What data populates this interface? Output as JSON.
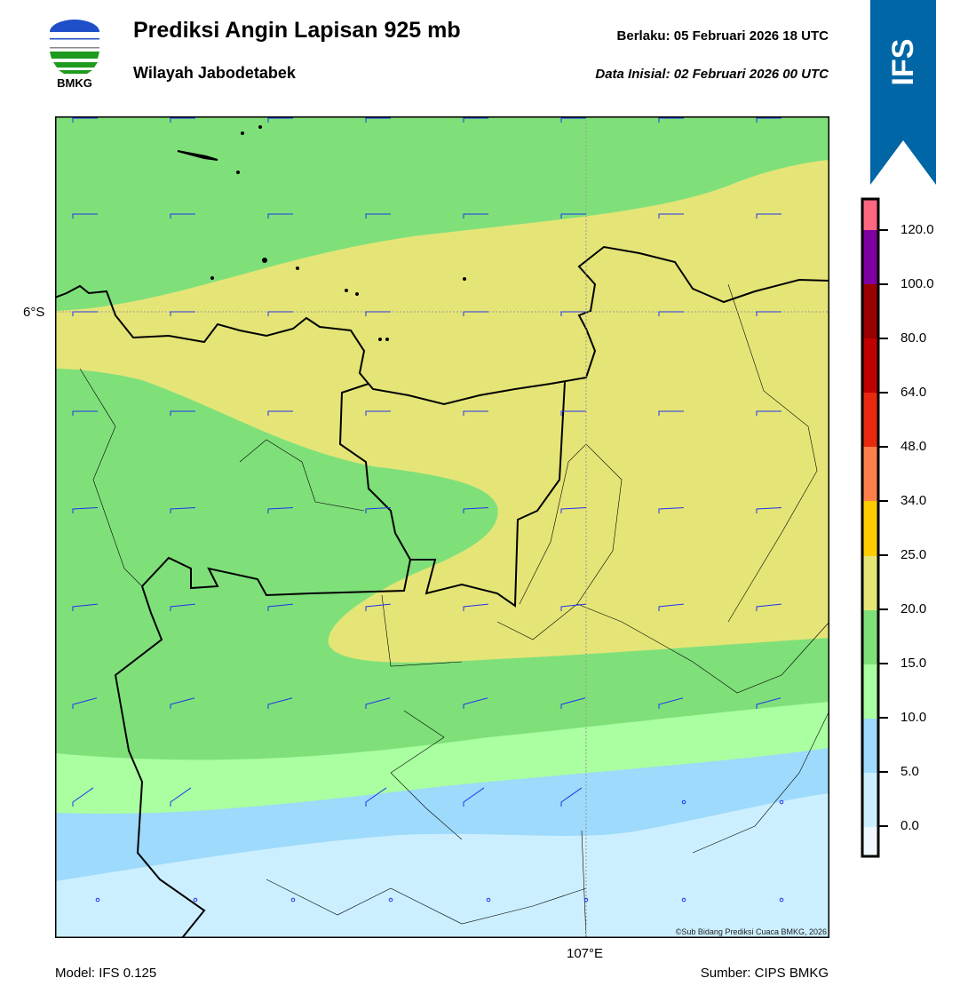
{
  "header": {
    "logo_text": "BMKG",
    "title": "Prediksi Angin Lapisan 925 mb",
    "subtitle": "Wilayah Jabodetabek",
    "valid": "Berlaku:  05 Februari 2026 18 UTC",
    "initial": "Data Inisial:  02 Februari 2026 00 UTC",
    "model_badge": "IFS"
  },
  "map": {
    "lat_label": "6°S",
    "lon_label": "107°E",
    "copyright": "©Sub Bidang Prediksi Cuaca BMKG, 2026",
    "colors": {
      "c0": "#F0F7FF",
      "c5": "#CCEFFF",
      "c10": "#9DDAFB",
      "c15": "#AAFFA0",
      "c20": "#7FE07A",
      "c25": "#E5E577",
      "c34": "#FFCC00",
      "c48": "#FF7F4A",
      "c64": "#E8290F",
      "c80": "#C00000",
      "c100": "#9A0000",
      "c120": "#7F00A0",
      "cmax": "#FF6680"
    },
    "wind_rows": [
      {
        "angle": 0,
        "cols": [
          1,
          1,
          1,
          1,
          1,
          1,
          1,
          1
        ]
      },
      {
        "angle": 0,
        "cols": [
          1,
          1,
          1,
          1,
          1,
          1,
          1,
          1
        ]
      },
      {
        "angle": 0,
        "cols": [
          1,
          1,
          1,
          1,
          1,
          1,
          1,
          1
        ]
      },
      {
        "angle": 0,
        "cols": [
          1,
          1,
          1,
          1,
          1,
          1,
          1,
          1
        ]
      },
      {
        "angle": -3,
        "cols": [
          1,
          1,
          1,
          1,
          1,
          1,
          1,
          1
        ]
      },
      {
        "angle": -6,
        "cols": [
          1,
          1,
          1,
          1,
          1,
          1,
          1,
          1
        ]
      },
      {
        "angle": -15,
        "cols": [
          1,
          1,
          1,
          1,
          1,
          1,
          1,
          1
        ]
      },
      {
        "angle": -35,
        "cols": [
          1,
          1,
          0,
          1,
          1,
          1,
          2,
          2
        ]
      },
      {
        "angle": 0,
        "cols": [
          2,
          2,
          2,
          2,
          2,
          2,
          2,
          2
        ]
      }
    ]
  },
  "colorbar": {
    "unit_ticks": [
      "120.0",
      "100.0",
      "80.0",
      "64.0",
      "48.0",
      "34.0",
      "25.0",
      "20.0",
      "15.0",
      "10.0",
      "5.0",
      "0.0"
    ]
  },
  "footer": {
    "model": "Model: IFS 0.125",
    "source": "Sumber: CIPS BMKG"
  }
}
